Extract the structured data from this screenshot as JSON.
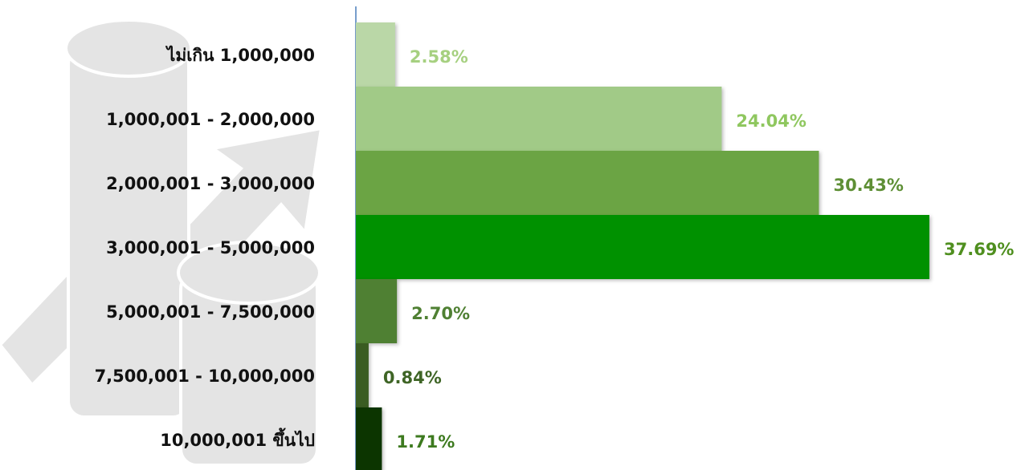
{
  "chart_data": {
    "type": "bar",
    "orientation": "horizontal",
    "categories": [
      "ไม่เกิน 1,000,000",
      "1,000,001 - 2,000,000",
      "2,000,001 - 3,000,000",
      "3,000,001 - 5,000,000",
      "5,000,001 - 7,500,000",
      "7,500,001 - 10,000,000",
      "10,000,001 ขึ้นไป"
    ],
    "values": [
      2.58,
      24.04,
      30.43,
      37.69,
      2.7,
      0.84,
      1.71
    ],
    "value_labels": [
      "2.58%",
      "24.04%",
      "30.43%",
      "37.69%",
      "2.70%",
      "0.84%",
      "1.71%"
    ],
    "colors": [
      "#bad7a7",
      "#a1ca87",
      "#6ba444",
      "#009100",
      "#4f8033",
      "#3a5c22",
      "#0c3500"
    ],
    "label_colors": [
      "#a6d080",
      "#8fc75f",
      "#5e8f35",
      "#4f8f1f",
      "#4f8033",
      "#3f6526",
      "#3d7a1f"
    ]
  }
}
